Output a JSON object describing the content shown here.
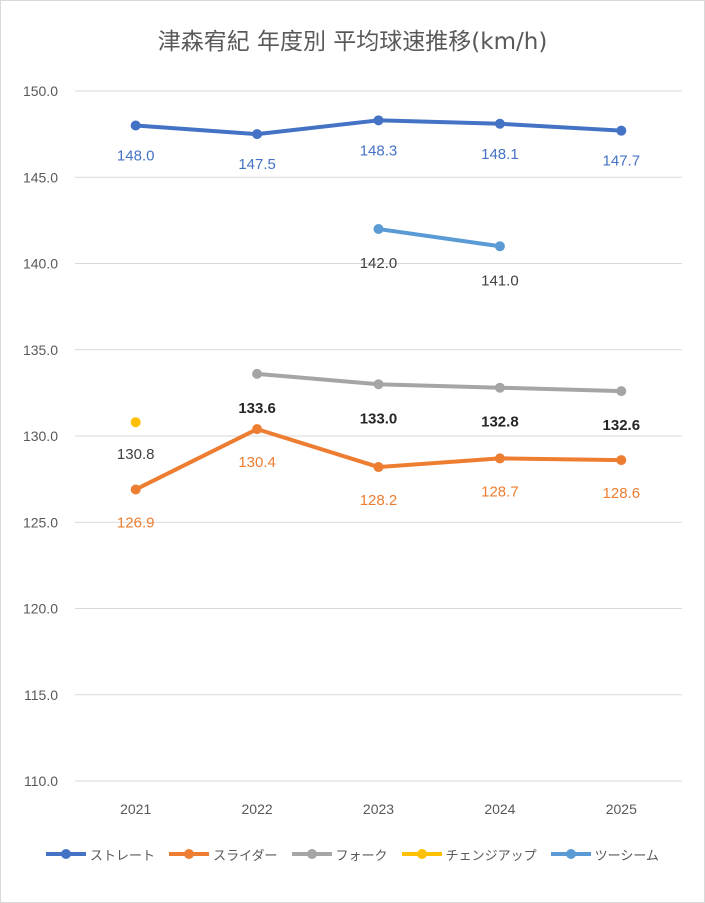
{
  "chart_data": {
    "type": "line",
    "title": "津森宥紀 年度別 平均球速推移(km/h)",
    "categories": [
      "2021",
      "2022",
      "2023",
      "2024",
      "2025"
    ],
    "ylim": [
      110,
      150
    ],
    "yticks": [
      "150.0",
      "145.0",
      "140.0",
      "135.0",
      "130.0",
      "125.0",
      "120.0",
      "115.0",
      "110.0"
    ],
    "grid": true,
    "legend_position": "bottom",
    "series": [
      {
        "name": "ストレート",
        "color": "#4472c4",
        "values": [
          148.0,
          147.5,
          148.3,
          148.1,
          147.7
        ],
        "labels": [
          "148.0",
          "147.5",
          "148.3",
          "148.1",
          "147.7"
        ],
        "label_color": "#4472c4"
      },
      {
        "name": "スライダー",
        "color": "#ed7d31",
        "values": [
          126.9,
          130.4,
          128.2,
          128.7,
          128.6
        ],
        "labels": [
          "126.9",
          "130.4",
          "128.2",
          "128.7",
          "128.6"
        ],
        "label_color": "#ed7d31"
      },
      {
        "name": "フォーク",
        "color": "#a5a5a5",
        "values": [
          null,
          133.6,
          133.0,
          132.8,
          132.6
        ],
        "labels": [
          null,
          "133.6",
          "133.0",
          "132.8",
          "132.6"
        ],
        "label_color": "#262626"
      },
      {
        "name": "チェンジアップ",
        "color": "#ffc000",
        "values": [
          130.8,
          null,
          null,
          null,
          null
        ],
        "labels": [
          "130.8",
          null,
          null,
          null,
          null
        ],
        "label_color": "#404040"
      },
      {
        "name": "ツーシーム",
        "color": "#5b9bd5",
        "values": [
          null,
          null,
          142.0,
          141.0,
          null
        ],
        "labels": [
          null,
          null,
          "142.0",
          "141.0",
          null
        ],
        "label_color": "#404040"
      }
    ]
  }
}
